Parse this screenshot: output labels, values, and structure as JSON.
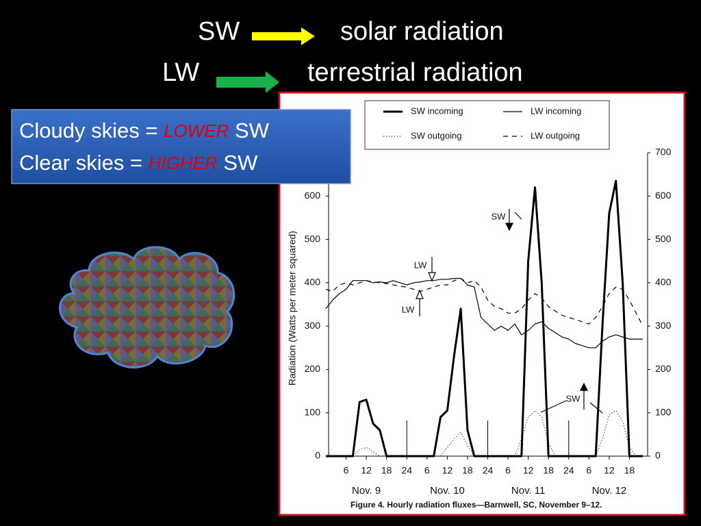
{
  "slide": {
    "line1": {
      "abbr": "SW",
      "meaning": "solar radiation"
    },
    "line2": {
      "abbr": "LW",
      "meaning": "terrestrial radiation"
    },
    "box": [
      {
        "lead": "Cloudy skies = ",
        "emphasis": "LOWER",
        "tail": " SW"
      },
      {
        "lead": "Clear skies = ",
        "emphasis": "HIGHER",
        "tail": " SW"
      }
    ]
  },
  "chart_data": {
    "type": "line",
    "ylabel": "Radiation (Watts per meter squared)",
    "caption": "Figure 4. Hourly radiation fluxes—Barnwell, SC, November 9–12.",
    "x": [
      0,
      2,
      4,
      6,
      8,
      10,
      12,
      14,
      16,
      18,
      20,
      22,
      24,
      26,
      28,
      30,
      32,
      34,
      36,
      38,
      40,
      42,
      44,
      46,
      48,
      50,
      52,
      54,
      56,
      58,
      60,
      62,
      64,
      66,
      68,
      70,
      72,
      74,
      76,
      78,
      80,
      82,
      84,
      86,
      88,
      90,
      92,
      94
    ],
    "series": [
      {
        "name": "SW incoming",
        "color": "#000000",
        "width": 3,
        "dash": "none",
        "values": [
          0,
          0,
          0,
          0,
          0,
          125,
          130,
          75,
          60,
          0,
          0,
          0,
          0,
          0,
          0,
          0,
          0,
          90,
          105,
          230,
          340,
          60,
          0,
          0,
          0,
          0,
          0,
          0,
          0,
          0,
          450,
          620,
          400,
          0,
          0,
          0,
          0,
          0,
          0,
          0,
          0,
          300,
          560,
          635,
          400,
          0,
          0,
          0
        ]
      },
      {
        "name": "LW incoming",
        "color": "#000000",
        "width": 1.2,
        "dash": "none",
        "values": [
          340,
          360,
          375,
          385,
          405,
          405,
          405,
          400,
          402,
          400,
          405,
          400,
          395,
          400,
          402,
          405,
          405,
          408,
          408,
          410,
          410,
          395,
          390,
          320,
          305,
          290,
          300,
          290,
          305,
          280,
          290,
          305,
          310,
          295,
          285,
          275,
          270,
          260,
          255,
          250,
          250,
          265,
          275,
          280,
          275,
          270,
          270,
          270
        ]
      },
      {
        "name": "SW outgoing",
        "color": "#000000",
        "width": 1.2,
        "dash": "1 3",
        "values": [
          0,
          0,
          0,
          0,
          0,
          15,
          20,
          10,
          0,
          0,
          0,
          0,
          0,
          0,
          0,
          0,
          0,
          0,
          20,
          40,
          55,
          25,
          0,
          0,
          0,
          0,
          0,
          0,
          0,
          40,
          90,
          105,
          90,
          30,
          0,
          0,
          0,
          0,
          0,
          0,
          0,
          40,
          95,
          105,
          80,
          20,
          0,
          0
        ]
      },
      {
        "name": "LW outgoing",
        "color": "#000000",
        "width": 1.2,
        "dash": "7 6",
        "values": [
          385,
          380,
          395,
          400,
          395,
          400,
          405,
          402,
          400,
          398,
          395,
          392,
          390,
          385,
          380,
          385,
          390,
          395,
          395,
          405,
          410,
          400,
          405,
          390,
          360,
          345,
          340,
          330,
          330,
          340,
          360,
          375,
          365,
          345,
          335,
          325,
          320,
          315,
          310,
          305,
          320,
          345,
          375,
          390,
          385,
          360,
          330,
          300
        ]
      }
    ],
    "xlim": [
      0,
      96
    ],
    "ylim": [
      0,
      700
    ],
    "xticks": [
      6,
      12,
      18,
      24,
      {
        "value": 30,
        "label": "6"
      },
      {
        "value": 36,
        "label": "12"
      },
      {
        "value": 42,
        "label": "18"
      },
      {
        "value": 48,
        "label": "24"
      },
      {
        "value": 54,
        "label": "6"
      },
      {
        "value": 60,
        "label": "12"
      },
      {
        "value": 66,
        "label": "18"
      },
      {
        "value": 72,
        "label": "24"
      },
      {
        "value": 78,
        "label": "6"
      },
      {
        "value": 84,
        "label": "12"
      },
      {
        "value": 90,
        "label": "18"
      }
    ],
    "day_ticks": [
      {
        "value": 12,
        "label": "Nov. 9"
      },
      {
        "value": 36,
        "label": "Nov. 10"
      },
      {
        "value": 60,
        "label": "Nov. 11"
      },
      {
        "value": 84,
        "label": "Nov. 12"
      }
    ],
    "yticks": [
      0,
      100,
      200,
      300,
      400,
      500,
      600,
      700
    ],
    "annotations": [
      "SW",
      "LW",
      "LW",
      "SW"
    ]
  }
}
